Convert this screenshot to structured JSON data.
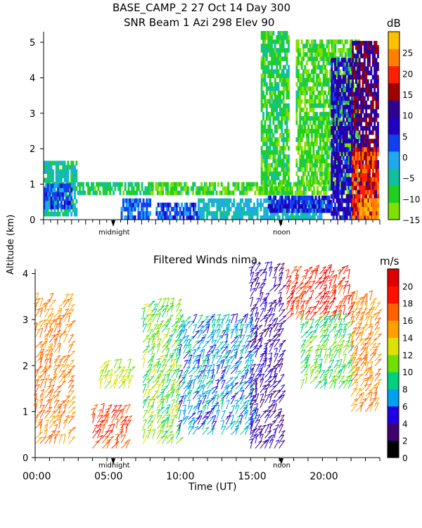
{
  "title_line1": "BASE_CAMP_2   27 Oct 14 Day 300",
  "title_line2": "SNR Beam 1 Azi 298 Elev 90",
  "ylabel": "Altitude (km)",
  "xlabel": "Time (UT)",
  "midnight_label": "midnight",
  "noon_label": "noon",
  "chart_data": [
    {
      "type": "heatmap",
      "title": "SNR Beam 1 Azi 298 Elev 90",
      "ylabel": "Altitude (km)",
      "ylim": [
        0,
        5.3
      ],
      "y_ticks": [
        0,
        1,
        2,
        3,
        4,
        5
      ],
      "xlim_hours": [
        0,
        24
      ],
      "colorbar": {
        "label": "dB",
        "ticks": [
          -15,
          -10,
          -5,
          0,
          5,
          10,
          15,
          20,
          25
        ],
        "ticklabels": [
          "−15",
          "−10",
          "−5",
          "0",
          "5",
          "10",
          "15",
          "20",
          "25"
        ],
        "range": [
          -15,
          30
        ],
        "colors": [
          "#80e000",
          "#20d020",
          "#10c0a0",
          "#20a8f0",
          "#1040f0",
          "#2000c0",
          "#300090",
          "#a00000",
          "#ff2000",
          "#ff8000",
          "#ffc000"
        ]
      },
      "regions": [
        {
          "t": [
            0,
            2.4
          ],
          "h": [
            0.1,
            1.6
          ],
          "snr": -5
        },
        {
          "t": [
            0,
            2.0
          ],
          "h": [
            0.3,
            1.0
          ],
          "snr": 3
        },
        {
          "t": [
            2.4,
            7.6
          ],
          "h": [
            0.7,
            1.0
          ],
          "snr": -7
        },
        {
          "t": [
            5.5,
            7.6
          ],
          "h": [
            0.0,
            0.5
          ],
          "snr": 2
        },
        {
          "t": [
            7.6,
            22.0
          ],
          "h": [
            0.7,
            1.0
          ],
          "snr": -10
        },
        {
          "t": [
            8.0,
            11.0
          ],
          "h": [
            0.0,
            0.4
          ],
          "snr": 3
        },
        {
          "t": [
            11.0,
            20.0
          ],
          "h": [
            0.0,
            0.5
          ],
          "snr": -3
        },
        {
          "t": [
            16.0,
            20.5
          ],
          "h": [
            0.2,
            0.6
          ],
          "snr": 5
        },
        {
          "t": [
            15.5,
            17.5
          ],
          "h": [
            1.0,
            5.3
          ],
          "snr": -8
        },
        {
          "t": [
            18.0,
            22.5
          ],
          "h": [
            1.0,
            5.0
          ],
          "snr": -10
        },
        {
          "t": [
            20.5,
            22.0
          ],
          "h": [
            0.0,
            4.5
          ],
          "snr": 8
        },
        {
          "t": [
            22.0,
            23.9
          ],
          "h": [
            0.0,
            5.0
          ],
          "snr": 12
        },
        {
          "t": [
            22.0,
            23.9
          ],
          "h": [
            0.0,
            2.0
          ],
          "snr": 20
        },
        {
          "t": [
            22.5,
            23.9
          ],
          "h": [
            0.0,
            0.6
          ],
          "snr": 26
        }
      ]
    },
    {
      "type": "scatter",
      "title": "Filtered Winds nima.",
      "ylabel": "Altitude (km)",
      "xlabel": "Time (UT)",
      "ylim": [
        0,
        4.1
      ],
      "y_ticks": [
        0,
        1,
        2,
        3,
        4
      ],
      "xlim_hours": [
        0,
        24
      ],
      "x_ticks": [
        "00:00",
        "05:00",
        "10:00",
        "15:00",
        "20:00"
      ],
      "x_tick_hours": [
        0,
        5,
        10,
        15,
        20
      ],
      "colorbar": {
        "label": "m/s",
        "ticks": [
          0,
          2,
          4,
          6,
          8,
          10,
          12,
          14,
          16,
          18,
          20
        ],
        "range": [
          0,
          22
        ],
        "colors": [
          "#000000",
          "#400070",
          "#2000e0",
          "#00a0f0",
          "#00d080",
          "#70e000",
          "#e0e000",
          "#ffa000",
          "#ff6000",
          "#ff1000",
          "#e00000"
        ]
      },
      "speed_regions": [
        {
          "t": [
            0,
            2.5
          ],
          "h": [
            0.3,
            3.4
          ],
          "speed": 16
        },
        {
          "t": [
            4.0,
            6.5
          ],
          "h": [
            0.2,
            1.0
          ],
          "speed": 18
        },
        {
          "t": [
            4.5,
            6.5
          ],
          "h": [
            1.5,
            2.0
          ],
          "speed": 12
        },
        {
          "t": [
            7.5,
            10.0
          ],
          "h": [
            0.3,
            3.3
          ],
          "speed": 11
        },
        {
          "t": [
            10.0,
            15.0
          ],
          "h": [
            0.5,
            3.0
          ],
          "speed": 7
        },
        {
          "t": [
            15.0,
            17.0
          ],
          "h": [
            0.2,
            4.1
          ],
          "speed": 4
        },
        {
          "t": [
            17.5,
            22.0
          ],
          "h": [
            3.0,
            4.0
          ],
          "speed": 19
        },
        {
          "t": [
            18.5,
            22.0
          ],
          "h": [
            1.5,
            3.0
          ],
          "speed": 10
        },
        {
          "t": [
            22.0,
            23.9
          ],
          "h": [
            1.0,
            3.5
          ],
          "speed": 16
        }
      ]
    }
  ]
}
